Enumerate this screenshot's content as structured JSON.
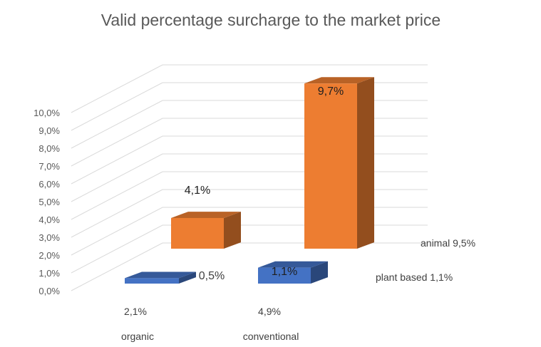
{
  "chart_data": {
    "type": "bar",
    "title": "Valid percentage surcharge to the market price",
    "ylim": [
      0,
      10
    ],
    "ytick_labels": [
      "0,0%",
      "1,0%",
      "2,0%",
      "3,0%",
      "4,0%",
      "5,0%",
      "6,0%",
      "7,0%",
      "8,0%",
      "9,0%",
      "10,0%"
    ],
    "categories": [
      "organic",
      "conventional"
    ],
    "category_sublabels": [
      "2,1%",
      "4,9%"
    ],
    "series": [
      {
        "values": [
          0.5,
          1.1
        ],
        "data_labels": [
          "0,5%",
          "1,1%"
        ],
        "color": "#4472c4",
        "side_label": "plant based 1,1%"
      },
      {
        "values": [
          4.1,
          9.7
        ],
        "data_labels": [
          "4,1%",
          "9,7%"
        ],
        "color": "#ed7d31",
        "side_label": "animal  9,5%"
      }
    ],
    "grid": true,
    "legend": "none"
  }
}
